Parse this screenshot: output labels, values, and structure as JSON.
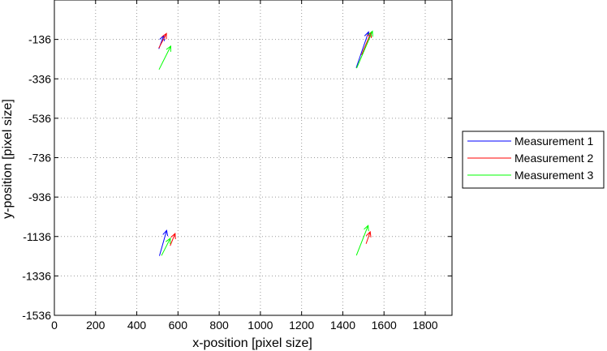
{
  "chart_data": {
    "type": "line",
    "xlabel": "x-position [pixel size]",
    "ylabel": "y-position [pixel size]",
    "xlim": [
      0,
      1930
    ],
    "ylim": [
      -1536,
      64
    ],
    "x_ticks": [
      0,
      200,
      400,
      600,
      800,
      1000,
      1200,
      1400,
      1600,
      1800
    ],
    "y_ticks": [
      -136,
      -336,
      -536,
      -736,
      -936,
      -1136,
      -1336,
      -1536
    ],
    "grid": true,
    "legend_position": "right",
    "series": [
      {
        "name": "Measurement 1",
        "color": "#0000ff",
        "arrows": [
          {
            "x": [
              507,
              531
            ],
            "y": [
              -184,
              -116
            ]
          },
          {
            "x": [
              1465,
              1525
            ],
            "y": [
              -280,
              -98
            ]
          },
          {
            "x": [
              510,
              545
            ],
            "y": [
              -1234,
              -1105
            ]
          }
        ]
      },
      {
        "name": "Measurement 2",
        "color": "#ff0000",
        "arrows": [
          {
            "x": [
              507,
              544
            ],
            "y": [
              -180,
              -106
            ]
          },
          {
            "x": [
              1491,
              1537
            ],
            "y": [
              -215,
              -100
            ]
          },
          {
            "x": [
              1513,
              1533
            ],
            "y": [
              -1173,
              -1112
            ]
          },
          {
            "x": [
              562,
              586
            ],
            "y": [
              -1183,
              -1121
            ]
          }
        ]
      },
      {
        "name": "Measurement 3",
        "color": "#00ff00",
        "arrows": [
          {
            "x": [
              508,
              565
            ],
            "y": [
              -289,
              -170
            ]
          },
          {
            "x": [
              1467,
              1544
            ],
            "y": [
              -282,
              -94
            ]
          },
          {
            "x": [
              520,
              563
            ],
            "y": [
              -1233,
              -1145
            ]
          },
          {
            "x": [
              1466,
              1523
            ],
            "y": [
              -1232,
              -1080
            ]
          }
        ]
      }
    ]
  }
}
